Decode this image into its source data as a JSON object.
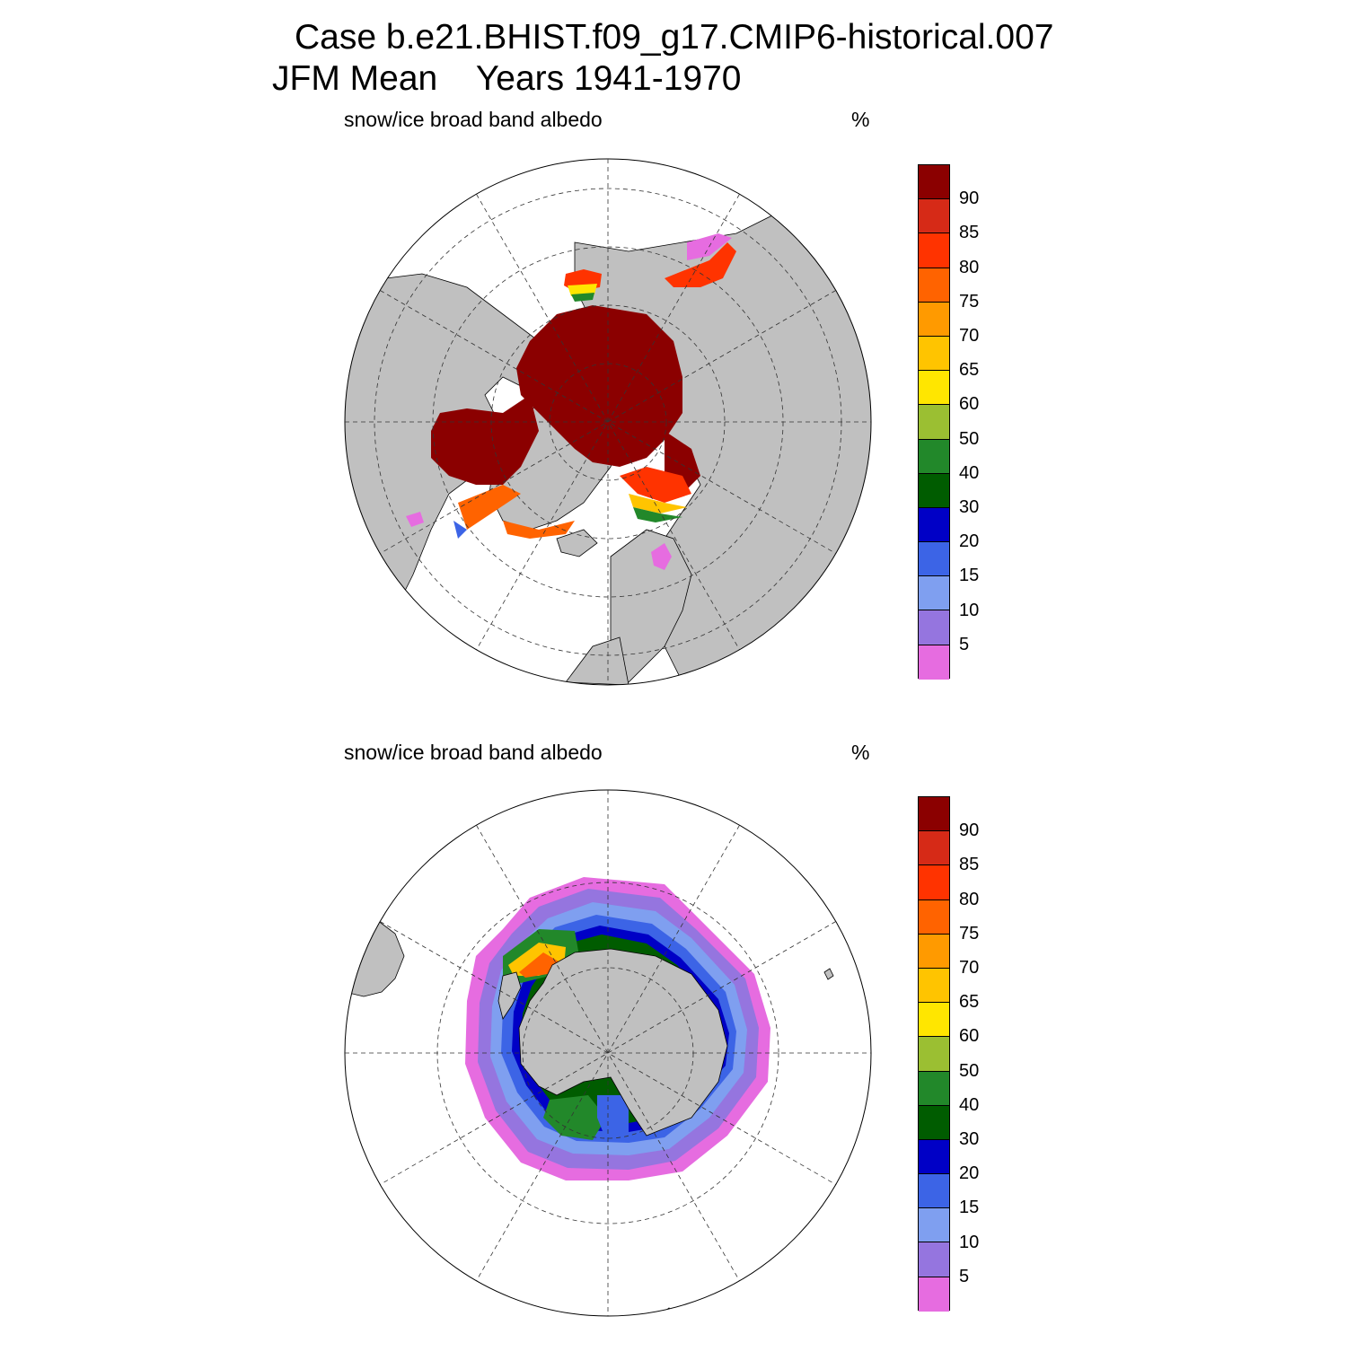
{
  "title_line1": "Case b.e21.BHIST.f09_g17.CMIP6-historical.007",
  "title_line2": "JFM Mean    Years 1941-1970",
  "panels": [
    {
      "id": "nh",
      "variable": "snow/ice broad band albedo",
      "units": "%"
    },
    {
      "id": "sh",
      "variable": "snow/ice broad band albedo",
      "units": "%"
    }
  ],
  "colorbar": {
    "labels": [
      "90",
      "85",
      "80",
      "75",
      "70",
      "65",
      "60",
      "50",
      "40",
      "30",
      "20",
      "15",
      "10",
      "5"
    ],
    "colors": [
      "#8b0000",
      "#d62a17",
      "#ff3300",
      "#ff6300",
      "#ff9a00",
      "#ffc400",
      "#ffe600",
      "#9bbf32",
      "#22882a",
      "#005c00",
      "#0000c6",
      "#3c64e6",
      "#7f9ff0",
      "#9575df",
      "#e66ce0"
    ]
  },
  "land_color": "#c0c0c0"
}
